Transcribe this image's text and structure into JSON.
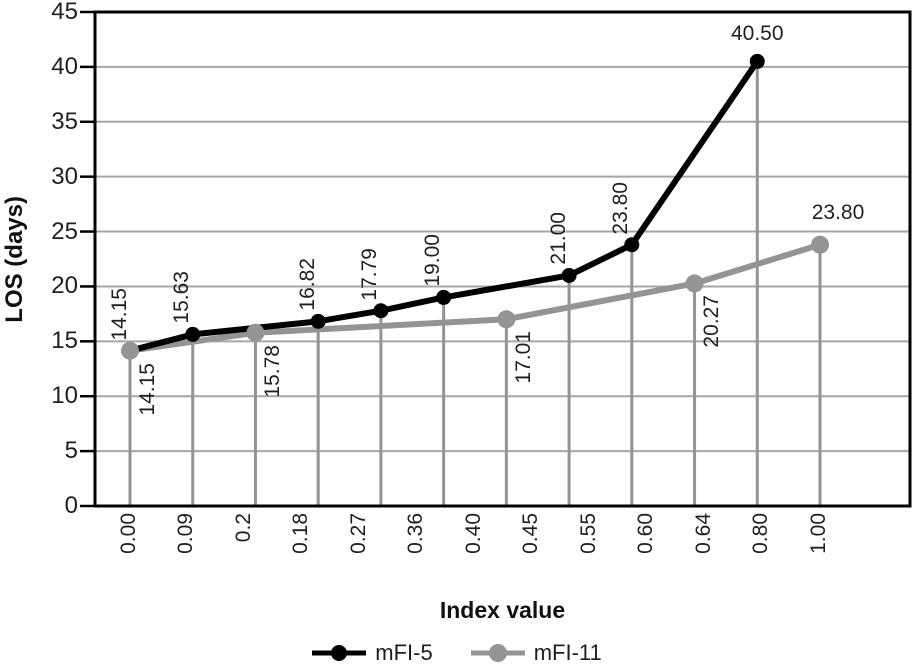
{
  "chart_data": {
    "type": "line",
    "title": "",
    "xlabel": "Index value",
    "ylabel": "LOS (days)",
    "ylim": [
      0,
      45
    ],
    "y_ticks": [
      0,
      5,
      10,
      15,
      20,
      25,
      30,
      35,
      40,
      45
    ],
    "categories": [
      "0.00",
      "0.09",
      "0.2",
      "0.18",
      "0.27",
      "0.36",
      "0.40",
      "0.45",
      "0.55",
      "0.60",
      "0.64",
      "0.80",
      "1.00"
    ],
    "grid": "horizontal-gray",
    "droplines": "vertical-gray-from-each-point",
    "legend_position": "bottom",
    "colors": {
      "grid": "#a6a6a6",
      "dropline": "#949494",
      "axis": "#000000",
      "text": "#1f1f1f"
    },
    "series": [
      {
        "name": "mFI-5",
        "color": "#000000",
        "points": [
          {
            "slot": 0,
            "value": 14.15,
            "label": "14.15",
            "side": "above",
            "orient": "vertical"
          },
          {
            "slot": 1,
            "value": 15.63,
            "label": "15.63",
            "side": "above",
            "orient": "vertical"
          },
          {
            "slot": 3,
            "value": 16.82,
            "label": "16.82",
            "side": "above",
            "orient": "vertical"
          },
          {
            "slot": 4,
            "value": 17.79,
            "label": "17.79",
            "side": "above",
            "orient": "vertical"
          },
          {
            "slot": 5,
            "value": 19.0,
            "label": "19.00",
            "side": "above",
            "orient": "vertical"
          },
          {
            "slot": 7,
            "value": 21.0,
            "label": "21.00",
            "side": "above",
            "orient": "vertical"
          },
          {
            "slot": 8,
            "value": 23.8,
            "label": "23.80",
            "side": "above",
            "orient": "vertical"
          },
          {
            "slot": 10,
            "value": 40.5,
            "label": "40.50",
            "side": "above",
            "orient": "horizontal",
            "dx": 0,
            "dy": -15
          }
        ]
      },
      {
        "name": "mFI-11",
        "color": "#949494",
        "points": [
          {
            "slot": 0,
            "value": 14.15,
            "label": "14.15",
            "side": "below",
            "orient": "vertical"
          },
          {
            "slot": 2,
            "value": 15.78,
            "label": "15.78",
            "side": "below",
            "orient": "vertical"
          },
          {
            "slot": 6,
            "value": 17.01,
            "label": "17.01",
            "side": "below",
            "orient": "vertical"
          },
          {
            "slot": 9,
            "value": 20.27,
            "label": "20.27",
            "side": "below",
            "orient": "vertical"
          },
          {
            "slot": 11,
            "value": 23.8,
            "label": "23.80",
            "side": "above",
            "orient": "horizontal",
            "dx": 18,
            "dy": -20
          }
        ]
      }
    ],
    "legend": [
      {
        "label": "mFI-5",
        "color": "#000000"
      },
      {
        "label": "mFI-11",
        "color": "#949494"
      }
    ]
  }
}
